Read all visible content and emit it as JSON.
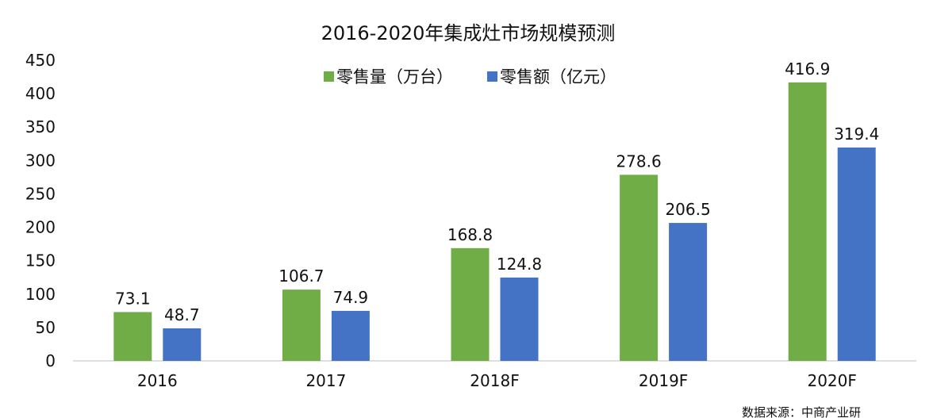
{
  "chart_data": {
    "type": "bar",
    "title": "2016-2020年集成灶市场规模预测",
    "categories": [
      "2016",
      "2017",
      "2018F",
      "2019F",
      "2020F"
    ],
    "series": [
      {
        "name": "零售量（万台）",
        "values": [
          73.1,
          106.7,
          168.8,
          278.6,
          416.9
        ],
        "color": "#70ad47"
      },
      {
        "name": "零售额（亿元）",
        "values": [
          48.7,
          74.9,
          124.8,
          206.5,
          319.4
        ],
        "color": "#4472c4"
      }
    ],
    "ylim": [
      0,
      450
    ],
    "yticks": [
      0,
      50,
      100,
      150,
      200,
      250,
      300,
      350,
      400,
      450
    ],
    "xlabel": "",
    "ylabel": "",
    "grid": false,
    "legend": "top-center",
    "axis_color": "#bfbfbf",
    "source_note": "数据来源：中商产业研"
  }
}
